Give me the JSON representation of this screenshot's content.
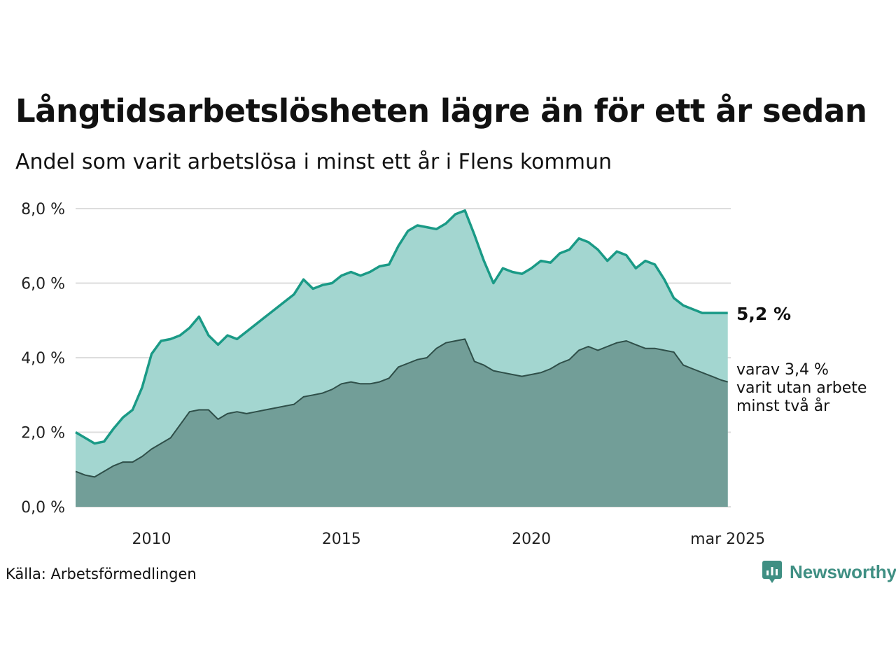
{
  "title": "Långtidsarbetslösheten lägre än för ett år sedan",
  "subtitle": "Andel som varit arbetslösa i minst ett år i Flens kommun",
  "source": "Källa: Arbetsförmedlingen",
  "brand": {
    "name": "Newsworthy",
    "icon": "newsworthy-logo-icon"
  },
  "colors": {
    "upper_line": "#1a9a86",
    "upper_fill": "#a3d6d0",
    "lower_line": "#2f4f49",
    "lower_fill": "#729e98",
    "grid": "#dddddd"
  },
  "chart_data": {
    "type": "area",
    "x_unit": "year",
    "xlim": [
      2008.0,
      2025.25
    ],
    "ylim": [
      0,
      8
    ],
    "grid": true,
    "y_ticks": [
      0,
      2,
      4,
      6,
      8
    ],
    "y_tick_labels": [
      "0,0 %",
      "2,0 %",
      "4,0 %",
      "6,0 %",
      "8,0 %"
    ],
    "x_ticks": [
      2010,
      2015,
      2020,
      2025.17
    ],
    "x_tick_labels": [
      "2010",
      "2015",
      "2020",
      "mar 2025"
    ],
    "annotations": {
      "upper_end": "5,2 %",
      "lower_end": [
        "varav 3,4 %",
        "varit utan arbete",
        "minst två år"
      ]
    },
    "series": [
      {
        "name": "minst ett år",
        "x": [
          2008.0,
          2008.25,
          2008.5,
          2008.75,
          2009.0,
          2009.25,
          2009.5,
          2009.75,
          2010.0,
          2010.25,
          2010.5,
          2010.75,
          2011.0,
          2011.25,
          2011.5,
          2011.75,
          2012.0,
          2012.25,
          2012.5,
          2012.75,
          2013.0,
          2013.25,
          2013.5,
          2013.75,
          2014.0,
          2014.25,
          2014.5,
          2014.75,
          2015.0,
          2015.25,
          2015.5,
          2015.75,
          2016.0,
          2016.25,
          2016.5,
          2016.75,
          2017.0,
          2017.25,
          2017.5,
          2017.75,
          2018.0,
          2018.25,
          2018.5,
          2018.75,
          2019.0,
          2019.25,
          2019.5,
          2019.75,
          2020.0,
          2020.25,
          2020.5,
          2020.75,
          2021.0,
          2021.25,
          2021.5,
          2021.75,
          2022.0,
          2022.25,
          2022.5,
          2022.75,
          2023.0,
          2023.25,
          2023.5,
          2023.75,
          2024.0,
          2024.25,
          2024.5,
          2024.75,
          2025.0,
          2025.17
        ],
        "values": [
          2.0,
          1.85,
          1.7,
          1.75,
          2.1,
          2.4,
          2.6,
          3.2,
          4.1,
          4.45,
          4.5,
          4.6,
          4.8,
          5.1,
          4.6,
          4.35,
          4.6,
          4.5,
          4.7,
          4.9,
          5.1,
          5.3,
          5.5,
          5.7,
          6.1,
          5.85,
          5.95,
          6.0,
          6.2,
          6.3,
          6.2,
          6.3,
          6.45,
          6.5,
          7.0,
          7.4,
          7.55,
          7.5,
          7.45,
          7.6,
          7.85,
          7.95,
          7.3,
          6.6,
          6.0,
          6.4,
          6.3,
          6.25,
          6.4,
          6.6,
          6.55,
          6.8,
          6.9,
          7.2,
          7.1,
          6.9,
          6.6,
          6.85,
          6.75,
          6.4,
          6.6,
          6.5,
          6.1,
          5.6,
          5.4,
          5.3,
          5.2,
          5.2,
          5.2,
          5.2
        ]
      },
      {
        "name": "varav minst två år",
        "x": [
          2008.0,
          2008.25,
          2008.5,
          2008.75,
          2009.0,
          2009.25,
          2009.5,
          2009.75,
          2010.0,
          2010.25,
          2010.5,
          2010.75,
          2011.0,
          2011.25,
          2011.5,
          2011.75,
          2012.0,
          2012.25,
          2012.5,
          2012.75,
          2013.0,
          2013.25,
          2013.5,
          2013.75,
          2014.0,
          2014.25,
          2014.5,
          2014.75,
          2015.0,
          2015.25,
          2015.5,
          2015.75,
          2016.0,
          2016.25,
          2016.5,
          2016.75,
          2017.0,
          2017.25,
          2017.5,
          2017.75,
          2018.0,
          2018.25,
          2018.5,
          2018.75,
          2019.0,
          2019.25,
          2019.5,
          2019.75,
          2020.0,
          2020.25,
          2020.5,
          2020.75,
          2021.0,
          2021.25,
          2021.5,
          2021.75,
          2022.0,
          2022.25,
          2022.5,
          2022.75,
          2023.0,
          2023.25,
          2023.5,
          2023.75,
          2024.0,
          2024.25,
          2024.5,
          2024.75,
          2025.0,
          2025.17
        ],
        "values": [
          0.95,
          0.85,
          0.8,
          0.95,
          1.1,
          1.2,
          1.2,
          1.35,
          1.55,
          1.7,
          1.85,
          2.2,
          2.55,
          2.6,
          2.6,
          2.35,
          2.5,
          2.55,
          2.5,
          2.55,
          2.6,
          2.65,
          2.7,
          2.75,
          2.95,
          3.0,
          3.05,
          3.15,
          3.3,
          3.35,
          3.3,
          3.3,
          3.35,
          3.45,
          3.75,
          3.85,
          3.95,
          4.0,
          4.25,
          4.4,
          4.45,
          4.5,
          3.9,
          3.8,
          3.65,
          3.6,
          3.55,
          3.5,
          3.55,
          3.6,
          3.7,
          3.85,
          3.95,
          4.2,
          4.3,
          4.2,
          4.3,
          4.4,
          4.45,
          4.35,
          4.25,
          4.25,
          4.2,
          4.15,
          3.8,
          3.7,
          3.6,
          3.5,
          3.4,
          3.35
        ]
      }
    ]
  }
}
